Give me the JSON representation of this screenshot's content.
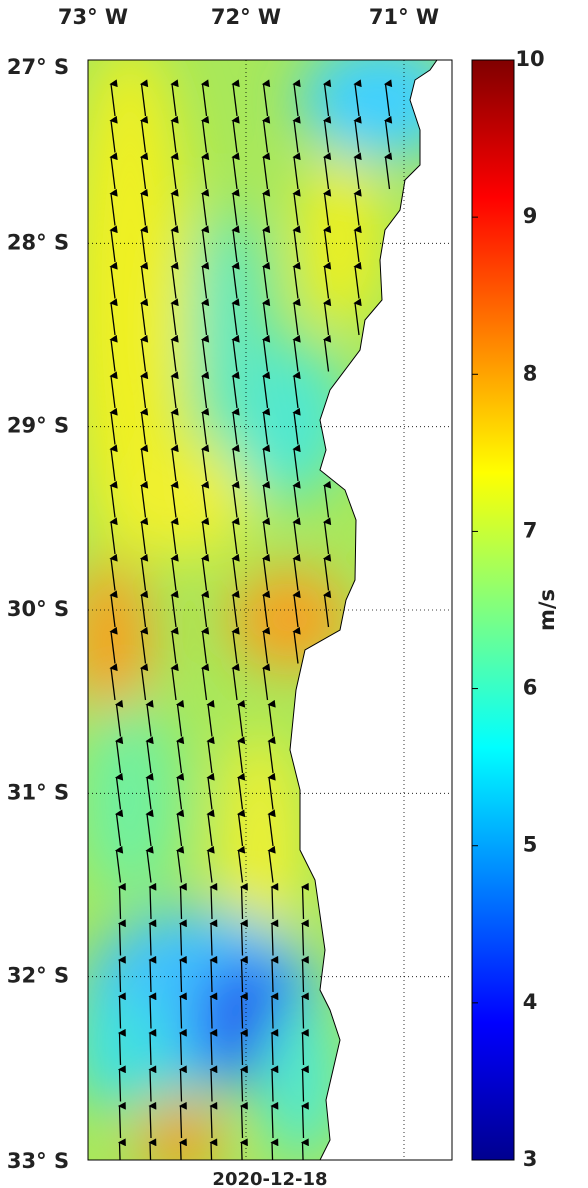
{
  "map": {
    "lon_ticks": [
      {
        "value": 73,
        "label": "73° W"
      },
      {
        "value": 72,
        "label": "72° W"
      },
      {
        "value": 71,
        "label": "71° W"
      }
    ],
    "lat_ticks": [
      {
        "value": 27,
        "label": "27° S"
      },
      {
        "value": 28,
        "label": "28° S"
      },
      {
        "value": 29,
        "label": "29° S"
      },
      {
        "value": 30,
        "label": "30° S"
      },
      {
        "value": 31,
        "label": "31° S"
      },
      {
        "value": 32,
        "label": "32° S"
      },
      {
        "value": 33,
        "label": "33° S"
      }
    ],
    "date": "2020-12-18",
    "colorbar": {
      "label": "m/s",
      "min": 3,
      "max": 10,
      "ticks": [
        3,
        4,
        5,
        6,
        7,
        8,
        9,
        10
      ]
    }
  }
}
